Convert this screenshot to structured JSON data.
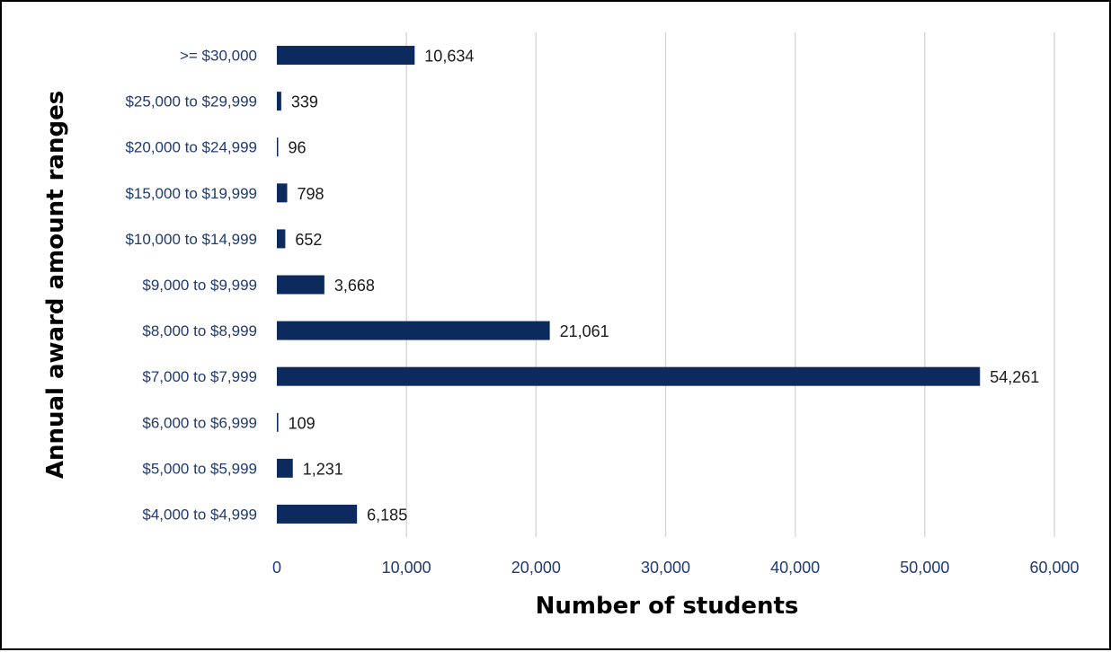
{
  "chart_data": {
    "type": "bar",
    "orientation": "horizontal",
    "title": "",
    "xlabel": "Number of students",
    "ylabel": "Annual award amount ranges",
    "categories": [
      ">= $30,000",
      "$25,000 to $29,999",
      "$20,000 to $24,999",
      "$15,000 to $19,999",
      "$10,000 to $14,999",
      "$9,000 to $9,999",
      "$8,000 to $8,999",
      "$7,000 to $7,999",
      "$6,000 to $6,999",
      "$5,000 to $5,999",
      "$4,000 to $4,999"
    ],
    "values": [
      10634,
      339,
      96,
      798,
      652,
      3668,
      21061,
      54261,
      109,
      1231,
      6185
    ],
    "value_labels": [
      "10,634",
      "339",
      "96",
      "798",
      "652",
      "3,668",
      "21,061",
      "54,261",
      "109",
      "1,231",
      "6,185"
    ],
    "xlim": [
      0,
      60000
    ],
    "xticks": [
      0,
      10000,
      20000,
      30000,
      40000,
      50000,
      60000
    ],
    "xtick_labels": [
      "0",
      "10,000",
      "20,000",
      "30,000",
      "40,000",
      "50,000",
      "60,000"
    ],
    "grid": "vertical",
    "legend": "none",
    "bar_color": "#0d2a5e",
    "category_label_color": "#1f3a73",
    "tick_label_color": "#1f3a73",
    "grid_color": "#d9d9d9"
  }
}
